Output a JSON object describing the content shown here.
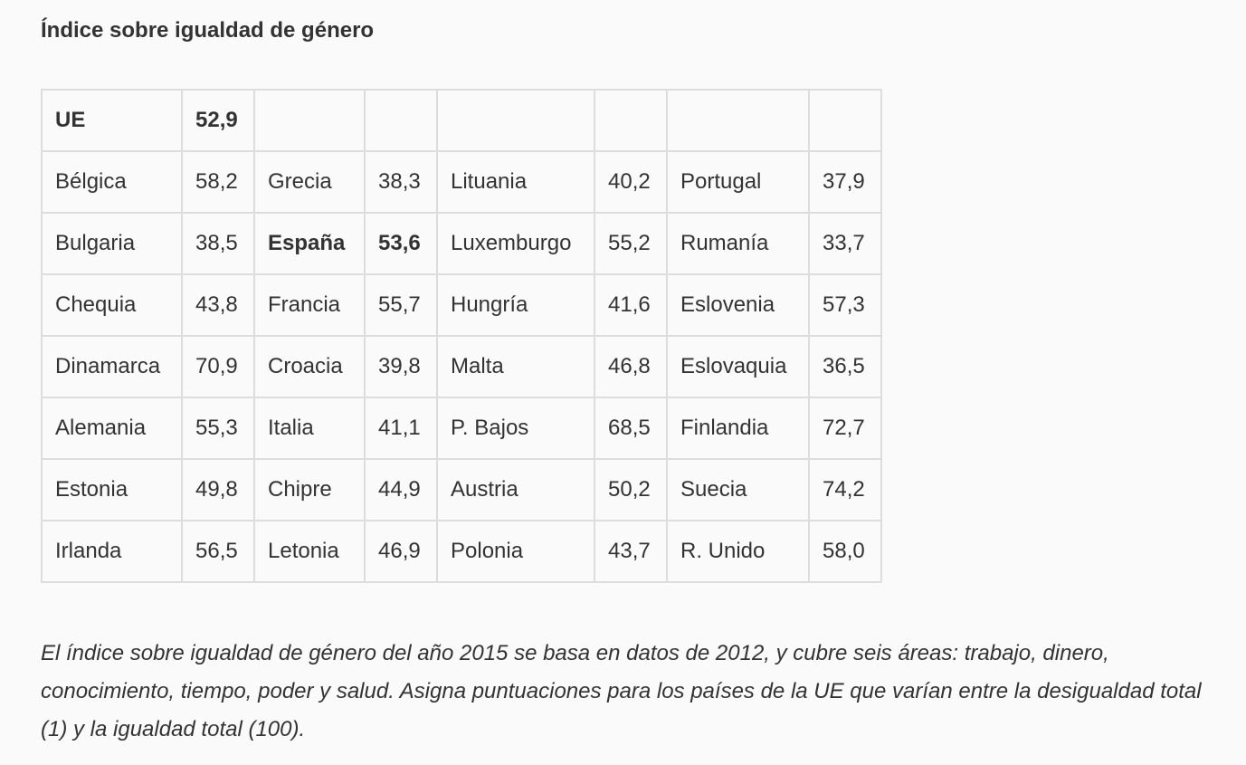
{
  "title": "Índice sobre igualdad de género",
  "table": {
    "rows": [
      [
        "UE",
        "52,9",
        "",
        "",
        "",
        "",
        "",
        ""
      ],
      [
        "Bélgica",
        "58,2",
        "Grecia",
        "38,3",
        "Lituania",
        "40,2",
        "Portugal",
        "37,9"
      ],
      [
        "Bulgaria",
        "38,5",
        "España",
        "53,6",
        "Luxemburgo",
        "55,2",
        "Rumanía",
        "33,7"
      ],
      [
        "Chequia",
        "43,8",
        "Francia",
        "55,7",
        "Hungría",
        "41,6",
        "Eslovenia",
        "57,3"
      ],
      [
        "Dinamarca",
        "70,9",
        "Croacia",
        "39,8",
        "Malta",
        "46,8",
        "Eslovaquia",
        "36,5"
      ],
      [
        "Alemania",
        "55,3",
        "Italia",
        "41,1",
        "P. Bajos",
        "68,5",
        "Finlandia",
        "72,7"
      ],
      [
        "Estonia",
        "49,8",
        "Chipre",
        "44,9",
        "Austria",
        "50,2",
        "Suecia",
        "74,2"
      ],
      [
        "Irlanda",
        "56,5",
        "Letonia",
        "46,9",
        "Polonia",
        "43,7",
        "R. Unido",
        "58,0"
      ]
    ],
    "bold_cells": [
      [
        0,
        0
      ],
      [
        0,
        1
      ],
      [
        2,
        2
      ],
      [
        2,
        3
      ]
    ]
  },
  "note": "El índice sobre igualdad de género del año 2015 se basa en datos de 2012, y cubre seis áreas: trabajo, dinero, conocimiento, tiempo, poder y salud. Asigna puntuaciones para los países de la UE que varían entre la desigualdad total (1) y la igualdad total (100)."
}
